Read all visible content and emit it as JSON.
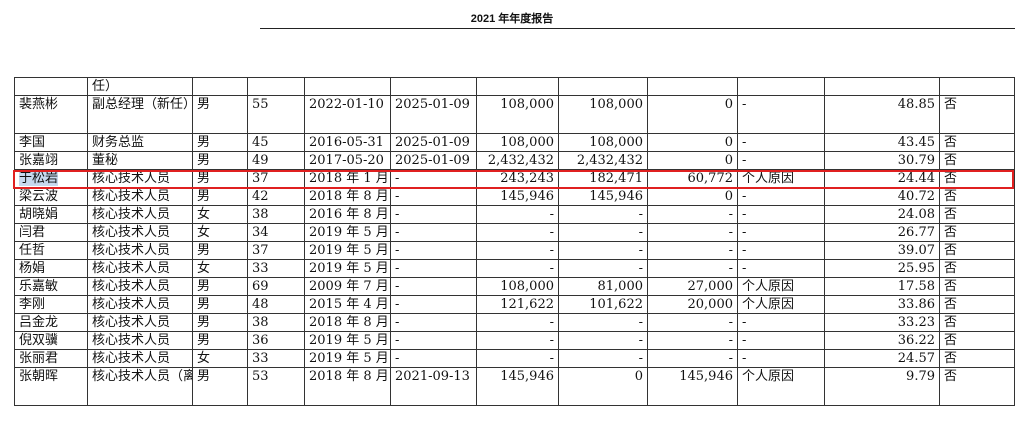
{
  "header": {
    "title": "2021 年年度报告"
  },
  "table": {
    "first_row_fragment": "任）",
    "rows": [
      {
        "name": "裴燕彬",
        "title": "副总经理（新任）",
        "gender": "男",
        "age": "55",
        "start": "2022-01-10",
        "end": "2025-01-09",
        "c1": "108,000",
        "c2": "108,000",
        "c3": "0",
        "reason": "-",
        "pay": "48.85",
        "related": "否"
      },
      {
        "name": "李国",
        "title": "财务总监",
        "gender": "男",
        "age": "45",
        "start": "2016-05-31",
        "end": "2025-01-09",
        "c1": "108,000",
        "c2": "108,000",
        "c3": "0",
        "reason": "-",
        "pay": "43.45",
        "related": "否"
      },
      {
        "name": "张嘉翊",
        "title": "董秘",
        "gender": "男",
        "age": "49",
        "start": "2017-05-20",
        "end": "2025-01-09",
        "c1": "2,432,432",
        "c2": "2,432,432",
        "c3": "0",
        "reason": "-",
        "pay": "30.79",
        "related": "否"
      },
      {
        "name": "于松岩",
        "title": "核心技术人员",
        "gender": "男",
        "age": "37",
        "start": "2018 年 1 月",
        "end": "-",
        "c1": "243,243",
        "c2": "182,471",
        "c3": "60,772",
        "reason": "个人原因",
        "pay": "24.44",
        "related": "否"
      },
      {
        "name": "梁云波",
        "title": "核心技术人员",
        "gender": "男",
        "age": "42",
        "start": "2018 年 8 月",
        "end": "-",
        "c1": "145,946",
        "c2": "145,946",
        "c3": "0",
        "reason": "-",
        "pay": "40.72",
        "related": "否"
      },
      {
        "name": "胡晓娟",
        "title": "核心技术人员",
        "gender": "女",
        "age": "38",
        "start": "2016 年 8 月",
        "end": "-",
        "c1": "-",
        "c2": "-",
        "c3": "-",
        "reason": "-",
        "pay": "24.08",
        "related": "否"
      },
      {
        "name": "闫君",
        "title": "核心技术人员",
        "gender": "女",
        "age": "34",
        "start": "2019 年 5 月",
        "end": "-",
        "c1": "-",
        "c2": "-",
        "c3": "-",
        "reason": "-",
        "pay": "26.77",
        "related": "否"
      },
      {
        "name": "任哲",
        "title": "核心技术人员",
        "gender": "男",
        "age": "37",
        "start": "2019 年 5 月",
        "end": "-",
        "c1": "-",
        "c2": "-",
        "c3": "-",
        "reason": "-",
        "pay": "39.07",
        "related": "否"
      },
      {
        "name": "杨娟",
        "title": "核心技术人员",
        "gender": "女",
        "age": "33",
        "start": "2019 年 5 月",
        "end": "-",
        "c1": "-",
        "c2": "-",
        "c3": "-",
        "reason": "-",
        "pay": "25.95",
        "related": "否"
      },
      {
        "name": "乐嘉敏",
        "title": "核心技术人员",
        "gender": "男",
        "age": "69",
        "start": "2009 年 7 月",
        "end": "-",
        "c1": "108,000",
        "c2": "81,000",
        "c3": "27,000",
        "reason": "个人原因",
        "pay": "17.58",
        "related": "否"
      },
      {
        "name": "李刚",
        "title": "核心技术人员",
        "gender": "男",
        "age": "48",
        "start": "2015 年 4 月",
        "end": "-",
        "c1": "121,622",
        "c2": "101,622",
        "c3": "20,000",
        "reason": "个人原因",
        "pay": "33.86",
        "related": "否"
      },
      {
        "name": "吕金龙",
        "title": "核心技术人员",
        "gender": "男",
        "age": "38",
        "start": "2018 年 8 月",
        "end": "-",
        "c1": "-",
        "c2": "-",
        "c3": "-",
        "reason": "-",
        "pay": "33.23",
        "related": "否"
      },
      {
        "name": "倪双骥",
        "title": "核心技术人员",
        "gender": "男",
        "age": "36",
        "start": "2019 年 5 月",
        "end": "-",
        "c1": "-",
        "c2": "-",
        "c3": "-",
        "reason": "-",
        "pay": "36.22",
        "related": "否"
      },
      {
        "name": "张丽君",
        "title": "核心技术人员",
        "gender": "女",
        "age": "33",
        "start": "2019 年 5 月",
        "end": "-",
        "c1": "-",
        "c2": "-",
        "c3": "-",
        "reason": "-",
        "pay": "24.57",
        "related": "否"
      },
      {
        "name": "张朝晖",
        "title": "核心技术人员（离职）",
        "gender": "男",
        "age": "53",
        "start": "2018 年 8 月",
        "end": "2021-09-13",
        "c1": "145,946",
        "c2": "0",
        "c3": "145,946",
        "reason": "个人原因",
        "pay": "9.79",
        "related": "否"
      }
    ]
  }
}
